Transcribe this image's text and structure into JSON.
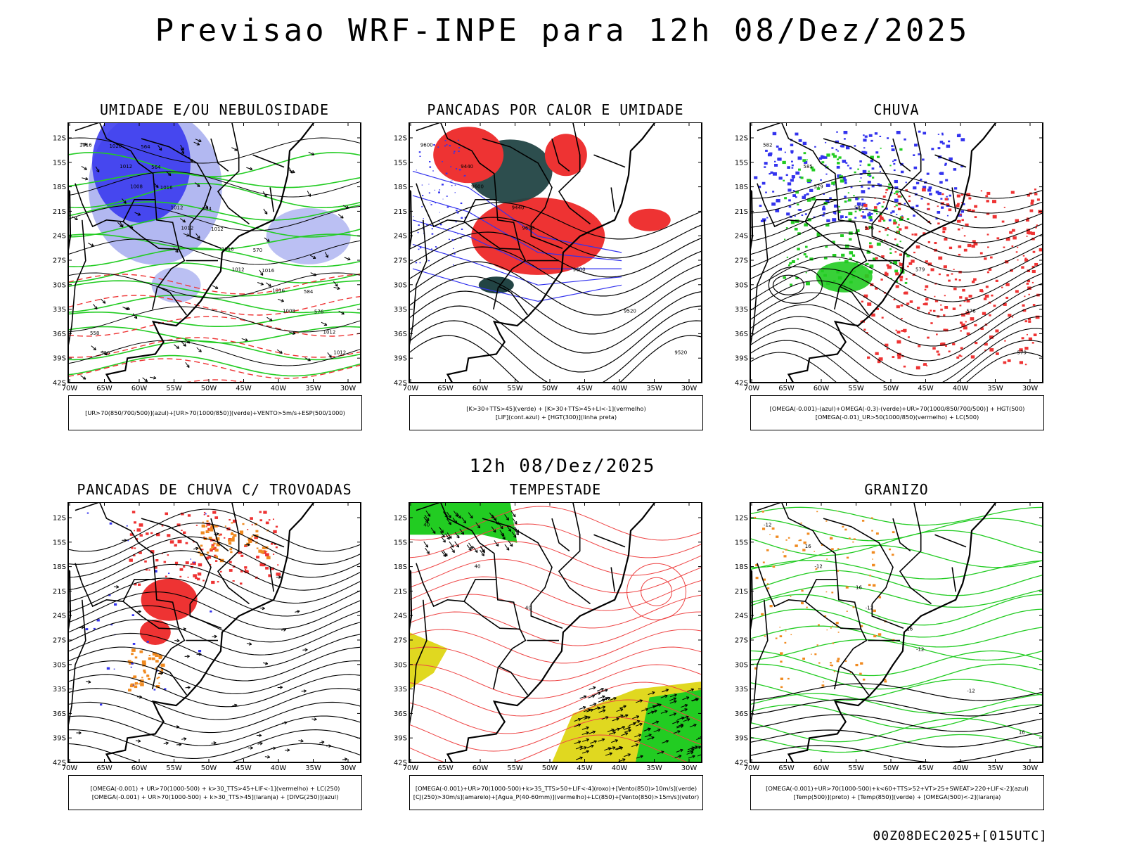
{
  "page": {
    "title": "Previsao WRF-INPE  para 12h 08/Dez/2025",
    "mid_title": "12h 08/Dez/2025",
    "footer": "00Z08DEC2025+[015UTC]"
  },
  "axes": {
    "lat_labels": [
      "12S",
      "15S",
      "18S",
      "21S",
      "24S",
      "27S",
      "30S",
      "33S",
      "36S",
      "39S",
      "42S"
    ],
    "lon_labels": [
      "70W",
      "65W",
      "60W",
      "55W",
      "50W",
      "45W",
      "40W",
      "35W",
      "30W"
    ]
  },
  "colors": {
    "blue": "#3333ee",
    "light_blue": "#aab0f0",
    "green": "#22cc22",
    "red": "#ee3333",
    "dark_teal": "#224444",
    "orange": "#f08a20",
    "yellow": "#e0d820",
    "contour_red": "#ee4444"
  },
  "panels": [
    {
      "title": "UMIDADE E/OU NEBULOSIDADE",
      "legend": [
        "[UR>70(850/700/500)](azul)+[UR>70(1000/850)](verde)+VENTO>5m/s+ESP(500/1000)"
      ],
      "contour_labels": [
        "1016",
        "1008",
        "1012",
        "1012",
        "1008",
        "1012",
        "1012",
        "1012",
        "1016",
        "1016",
        "1012",
        "1020",
        "1016",
        "1012",
        "1016",
        "576",
        "570",
        "564",
        "564",
        "570",
        "584",
        "558",
        "564"
      ]
    },
    {
      "title": "PANCADAS POR CALOR E UMIDADE",
      "legend": [
        "[K>30+TTS>45](verde) + [K>30+TTS>45+LI<-1](vermelho)",
        "[LIF](cont.azul) + [HGT(300)](linha preta)"
      ],
      "contour_labels": [
        "9600",
        "9600",
        "9600",
        "9600",
        "9520",
        "9520",
        "9440",
        "9440"
      ]
    },
    {
      "title": "CHUVA",
      "legend": [
        "[OMEGA(-0.001)-(azul)+OMEGA(-0.3)-(verde)+UR>70(1000/850/700/500)] + HGT(500)",
        "[OMEGA(-0.01)_UR>50(1000/850)(vermelho) + LC(500)"
      ],
      "contour_labels": [
        "582",
        "579",
        "576",
        "579",
        "576",
        "579",
        "585",
        "582"
      ]
    },
    {
      "title": "PANCADAS DE CHUVA C/ TROVOADAS",
      "legend": [
        "[OMEGA(-0.001) + UR>70(1000-500) + k>30_TTS>45+LIF<-1](vermelho) + LC(250)",
        "[OMEGA(-0.001) + UR>70(1000-500) + k>30_TTS>45](laranja) + [DIVG(250)](azul)"
      ],
      "contour_labels": []
    },
    {
      "title": "TEMPESTADE",
      "legend": [
        "[OMEGA(-0.001)+UR>70(1000-500)+k>35_TTS>50+LIF<-4](roxo)+[Vento(850)>10m/s](verde)",
        "[CJ(250)>30m/s](amarelo)+[Agua_P(40-60mm)](vermelho)+LC(850)+[Vento(850)>15m/s](vetor)"
      ],
      "contour_labels": [
        "40",
        "40",
        "40"
      ]
    },
    {
      "title": "GRANIZO",
      "legend": [
        "[OMEGA(-0.001)+UR>70(1000-500)+k<60+TTS>52+VT>25+SWEAT>220+LIF<-2](azul)",
        "[Temp(500)](preto) + [Temp(850)](verde) + [OMEGA(500)<-2](laranja)"
      ],
      "contour_labels": [
        "-12",
        "-12",
        "-12",
        "-12",
        "-12",
        "16",
        "16",
        "16",
        "16"
      ]
    }
  ]
}
